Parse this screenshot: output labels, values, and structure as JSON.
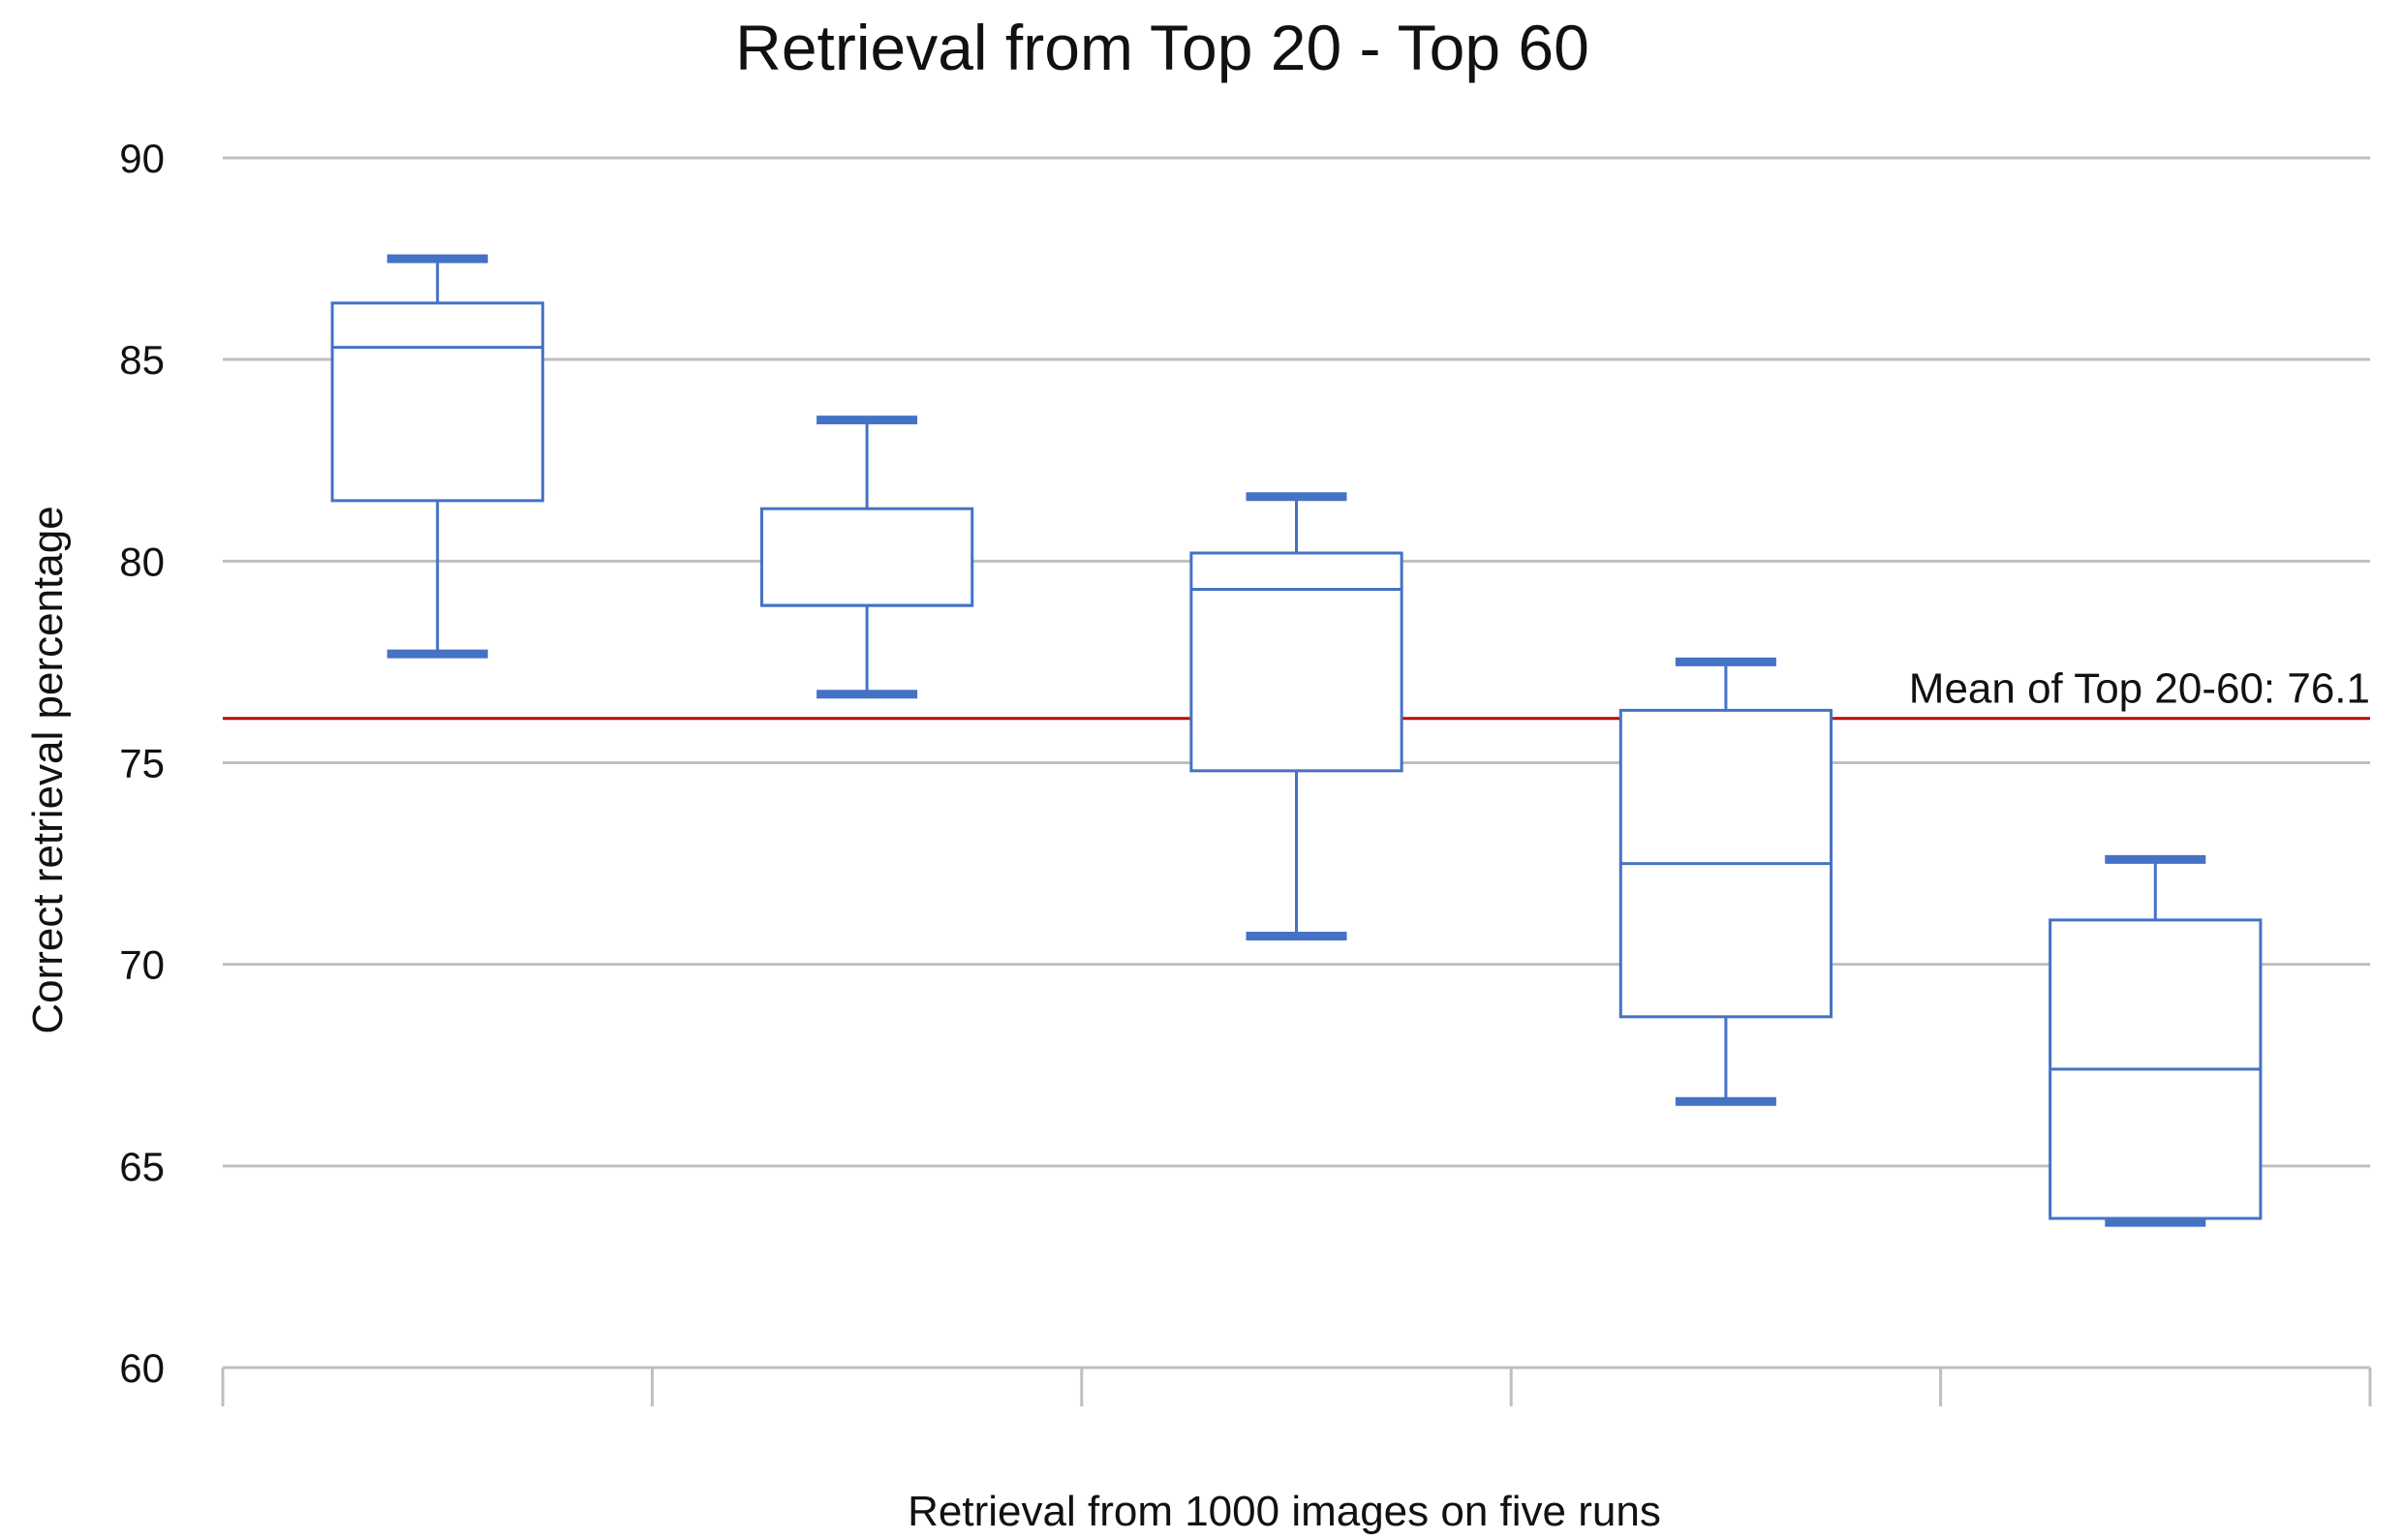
{
  "chart_data": {
    "type": "box",
    "title": "Retrieval from Top 20 - Top 60",
    "xlabel": "Retrieval from 1000 images on five runs",
    "ylabel": "Correct retrieval percentage",
    "ylim": [
      60,
      90
    ],
    "yticks": [
      60,
      65,
      70,
      75,
      80,
      85,
      90
    ],
    "grid": true,
    "boxes": [
      {
        "min": 77.7,
        "q1": 81.5,
        "median": 85.3,
        "q3": 86.4,
        "max": 87.5
      },
      {
        "min": 76.7,
        "q1": 78.9,
        "median": 78.9,
        "q3": 81.3,
        "max": 83.5
      },
      {
        "min": 70.7,
        "q1": 74.8,
        "median": 79.3,
        "q3": 80.2,
        "max": 81.6
      },
      {
        "min": 66.6,
        "q1": 68.7,
        "median": 72.5,
        "q3": 76.3,
        "max": 77.5
      },
      {
        "min": 63.6,
        "q1": 63.7,
        "median": 67.4,
        "q3": 71.1,
        "max": 72.6
      }
    ],
    "reference_line": {
      "label": "Mean of Top 20-60: 76.1",
      "value": 76.1
    },
    "colors": {
      "box": "#4472c4",
      "grid": "#bfbfbf",
      "mean_line": "#c00000"
    }
  }
}
